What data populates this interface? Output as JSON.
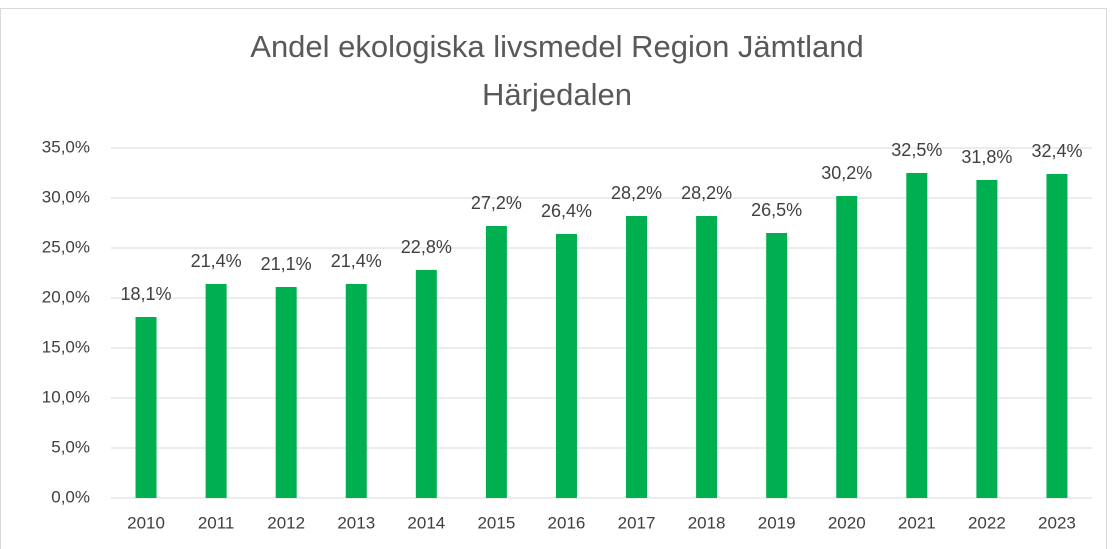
{
  "chart_data": {
    "type": "bar",
    "title": [
      "Andel ekologiska livsmedel Region Jämtland",
      "Härjedalen"
    ],
    "categories": [
      "2010",
      "2011",
      "2012",
      "2013",
      "2014",
      "2015",
      "2016",
      "2017",
      "2018",
      "2019",
      "2020",
      "2021",
      "2022",
      "2023"
    ],
    "values": [
      18.1,
      21.4,
      21.1,
      21.4,
      22.8,
      27.2,
      26.4,
      28.2,
      28.2,
      26.5,
      30.2,
      32.5,
      31.8,
      32.4
    ],
    "value_labels": [
      "18,1%",
      "21,4%",
      "21,1%",
      "21,4%",
      "22,8%",
      "27,2%",
      "26,4%",
      "28,2%",
      "28,2%",
      "26,5%",
      "30,2%",
      "32,5%",
      "31,8%",
      "32,4%"
    ],
    "color": "#00b050",
    "ylim": [
      0,
      35
    ],
    "yticks": [
      {
        "value": 0,
        "label": "0,0%"
      },
      {
        "value": 5,
        "label": "5,0%"
      },
      {
        "value": 10,
        "label": "10,0%"
      },
      {
        "value": 15,
        "label": "15,0%"
      },
      {
        "value": 20,
        "label": "20,0%"
      },
      {
        "value": 25,
        "label": "25,0%"
      },
      {
        "value": 30,
        "label": "30,0%"
      },
      {
        "value": 35,
        "label": "35,0%"
      }
    ],
    "grid": true
  }
}
